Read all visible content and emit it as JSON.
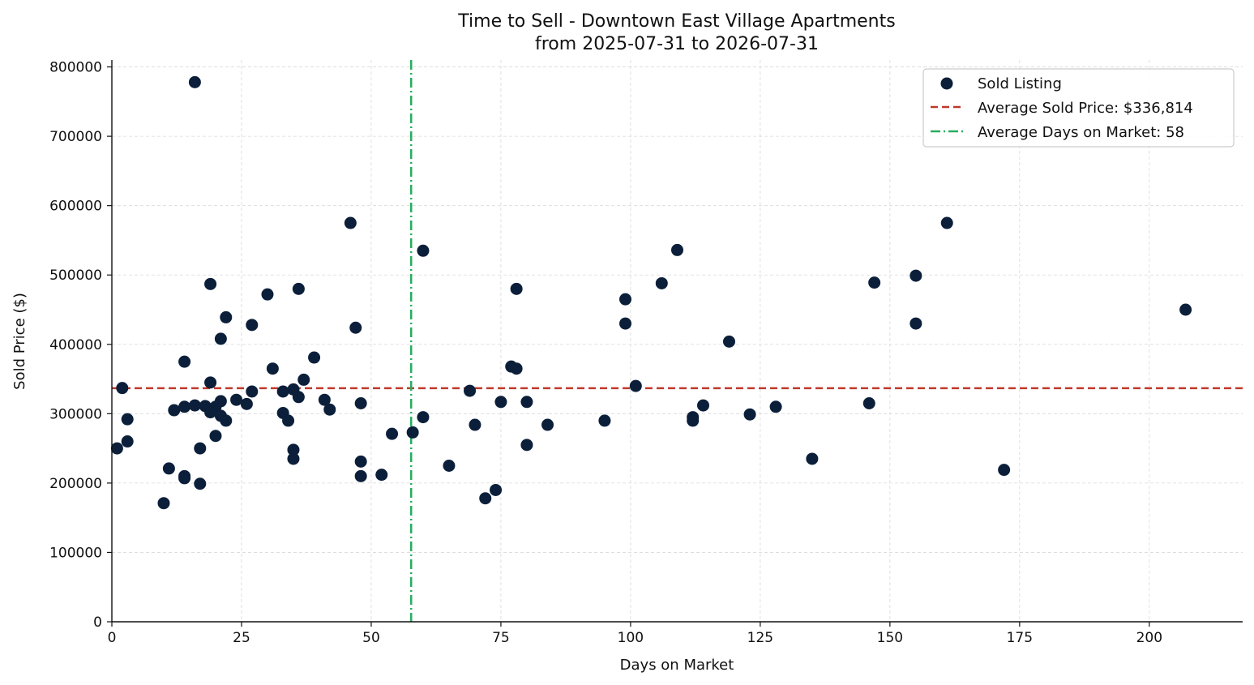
{
  "chart_data": {
    "type": "scatter",
    "title": "Time to Sell - Downtown East Village Apartments",
    "subtitle": "from 2025-07-31 to 2026-07-31",
    "xlabel": "Days on Market",
    "ylabel": "Sold Price ($)",
    "xlim": [
      0,
      218
    ],
    "ylim": [
      0,
      810000
    ],
    "x_ticks": [
      0,
      25,
      50,
      75,
      100,
      125,
      150,
      175,
      200
    ],
    "y_ticks": [
      0,
      100000,
      200000,
      300000,
      400000,
      500000,
      600000,
      700000,
      800000
    ],
    "grid": true,
    "legend_position": "top-right",
    "colors": {
      "points": "#0b1f3a",
      "avg_price_line": "#c0392b",
      "avg_days_line": "#27ae60",
      "grid": "#d9d9d9"
    },
    "series": [
      {
        "name": "Sold Listing",
        "points": [
          [
            1,
            250000
          ],
          [
            2,
            337000
          ],
          [
            3,
            292000
          ],
          [
            3,
            260000
          ],
          [
            10,
            171000
          ],
          [
            11,
            221000
          ],
          [
            12,
            305000
          ],
          [
            14,
            210000
          ],
          [
            14,
            207000
          ],
          [
            14,
            310000
          ],
          [
            14,
            375000
          ],
          [
            16,
            778000
          ],
          [
            16,
            312000
          ],
          [
            17,
            250000
          ],
          [
            17,
            199000
          ],
          [
            18,
            311000
          ],
          [
            19,
            345000
          ],
          [
            19,
            487000
          ],
          [
            19,
            302000
          ],
          [
            20,
            310000
          ],
          [
            20,
            268000
          ],
          [
            21,
            297000
          ],
          [
            21,
            318000
          ],
          [
            21,
            408000
          ],
          [
            22,
            439000
          ],
          [
            22,
            290000
          ],
          [
            24,
            320000
          ],
          [
            26,
            314000
          ],
          [
            27,
            332000
          ],
          [
            27,
            428000
          ],
          [
            30,
            472000
          ],
          [
            31,
            365000
          ],
          [
            33,
            301000
          ],
          [
            33,
            332000
          ],
          [
            34,
            290000
          ],
          [
            35,
            335000
          ],
          [
            35,
            248000
          ],
          [
            35,
            235000
          ],
          [
            36,
            324000
          ],
          [
            36,
            480000
          ],
          [
            37,
            349000
          ],
          [
            39,
            381000
          ],
          [
            41,
            320000
          ],
          [
            42,
            306000
          ],
          [
            46,
            575000
          ],
          [
            47,
            424000
          ],
          [
            48,
            315000
          ],
          [
            48,
            231000
          ],
          [
            48,
            210000
          ],
          [
            52,
            212000
          ],
          [
            54,
            271000
          ],
          [
            58,
            273000
          ],
          [
            60,
            295000
          ],
          [
            60,
            535000
          ],
          [
            65,
            225000
          ],
          [
            69,
            333000
          ],
          [
            70,
            284000
          ],
          [
            72,
            178000
          ],
          [
            74,
            190000
          ],
          [
            75,
            317000
          ],
          [
            77,
            368000
          ],
          [
            78,
            365000
          ],
          [
            78,
            480000
          ],
          [
            80,
            317000
          ],
          [
            80,
            255000
          ],
          [
            84,
            284000
          ],
          [
            95,
            290000
          ],
          [
            99,
            465000
          ],
          [
            99,
            430000
          ],
          [
            101,
            340000
          ],
          [
            106,
            488000
          ],
          [
            109,
            536000
          ],
          [
            112,
            295000
          ],
          [
            112,
            290000
          ],
          [
            114,
            312000
          ],
          [
            119,
            404000
          ],
          [
            123,
            299000
          ],
          [
            128,
            310000
          ],
          [
            135,
            235000
          ],
          [
            146,
            315000
          ],
          [
            147,
            489000
          ],
          [
            155,
            499000
          ],
          [
            155,
            430000
          ],
          [
            161,
            575000
          ],
          [
            172,
            219000
          ],
          [
            207,
            450000
          ]
        ]
      }
    ],
    "reference_lines": [
      {
        "name": "Average Sold Price: $336,814",
        "orientation": "horizontal",
        "value": 336814,
        "style": "dashed"
      },
      {
        "name": "Average Days on Market: 58",
        "orientation": "vertical",
        "value": 57.7,
        "style": "dash-dot"
      }
    ]
  }
}
